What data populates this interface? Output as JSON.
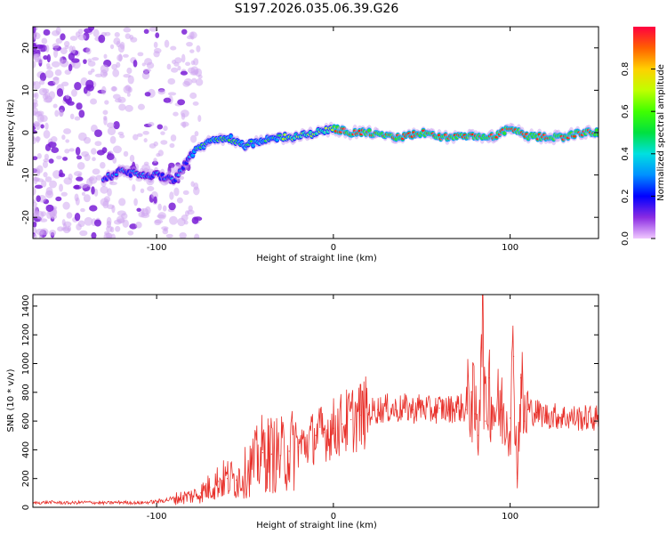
{
  "title": "S197.2026.035.06.39.G26",
  "chart_data": [
    {
      "type": "heatmap",
      "name": "spectrogram",
      "xlabel": "Height of straight line (km)",
      "ylabel": "Frequency (Hz)",
      "xlim": [
        -170,
        150
      ],
      "ylim": [
        -25,
        25
      ],
      "xticks": [
        -100,
        0,
        100
      ],
      "xtick_labels": [
        "-100",
        "0",
        "100"
      ],
      "yticks": [
        -20,
        -10,
        0,
        10,
        20
      ],
      "ytick_labels": [
        "-20",
        "-10",
        "0",
        "10",
        "20"
      ],
      "ridge": {
        "x": [
          -130,
          -120,
          -110,
          -100,
          -90,
          -80,
          -70,
          -60,
          -50,
          -40,
          -30,
          -20,
          -10,
          0,
          10,
          20,
          30,
          40,
          50,
          60,
          70,
          80,
          90,
          100,
          110,
          120,
          130,
          140,
          150
        ],
        "y": [
          -11,
          -9,
          -10,
          -10,
          -11,
          -5,
          -2,
          -1,
          -3,
          -2,
          -1,
          -1,
          0,
          1,
          0,
          0,
          -1,
          -1,
          0,
          -1,
          -1,
          -1,
          -1,
          1,
          -1,
          -1,
          -1,
          0,
          0
        ]
      },
      "colorbar": {
        "label": "Normalized spectral amplitude",
        "range": [
          0,
          1
        ],
        "ticks": [
          0.0,
          0.2,
          0.4,
          0.6,
          0.8
        ],
        "tick_labels": [
          "0.0",
          "0.2",
          "0.4",
          "0.6",
          "0.8"
        ]
      }
    },
    {
      "type": "line",
      "name": "snr",
      "xlabel": "Height of straight line (km)",
      "ylabel": "SNR (10 * v/v)",
      "xlim": [
        -170,
        150
      ],
      "ylim": [
        0,
        1480
      ],
      "xticks": [
        -100,
        0,
        100
      ],
      "xtick_labels": [
        "-100",
        "0",
        "100"
      ],
      "yticks": [
        0,
        200,
        400,
        600,
        800,
        1000,
        1200,
        1400
      ],
      "ytick_labels": [
        "0",
        "200",
        "400",
        "600",
        "800",
        "1000",
        "1200",
        "1400"
      ],
      "series": [
        {
          "name": "SNR",
          "color": "#e8302a",
          "x": [
            -170,
            -160,
            -150,
            -140,
            -130,
            -120,
            -110,
            -100,
            -95,
            -90,
            -85,
            -80,
            -75,
            -70,
            -65,
            -60,
            -55,
            -50,
            -45,
            -40,
            -35,
            -30,
            -25,
            -20,
            -15,
            -10,
            -5,
            0,
            5,
            10,
            15,
            20,
            25,
            30,
            35,
            40,
            45,
            50,
            55,
            60,
            65,
            70,
            75,
            78,
            80,
            82,
            84,
            86,
            88,
            90,
            95,
            100,
            102,
            104,
            106,
            108,
            110,
            115,
            120,
            130,
            140,
            150
          ],
          "values": [
            30,
            35,
            30,
            35,
            30,
            35,
            30,
            40,
            50,
            60,
            70,
            80,
            100,
            140,
            180,
            200,
            190,
            240,
            300,
            380,
            370,
            360,
            390,
            420,
            450,
            500,
            520,
            550,
            580,
            610,
            640,
            660,
            680,
            690,
            680,
            690,
            680,
            700,
            670,
            690,
            680,
            700,
            680,
            800,
            650,
            500,
            1480,
            600,
            900,
            700,
            680,
            620,
            1050,
            200,
            900,
            600,
            680,
            660,
            640,
            630,
            620,
            620
          ]
        }
      ]
    }
  ]
}
